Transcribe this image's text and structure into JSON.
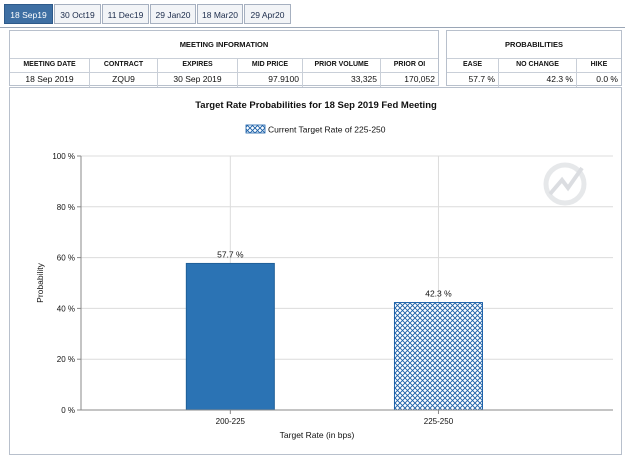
{
  "tabs": [
    {
      "label": "18 Sep19",
      "active": true
    },
    {
      "label": "30 Oct19",
      "active": false
    },
    {
      "label": "11 Dec19",
      "active": false
    },
    {
      "label": "29 Jan20",
      "active": false
    },
    {
      "label": "18 Mar20",
      "active": false
    },
    {
      "label": "29 Apr20",
      "active": false
    }
  ],
  "meeting_info": {
    "title": "MEETING INFORMATION",
    "headers": [
      "MEETING DATE",
      "CONTRACT",
      "EXPIRES",
      "MID PRICE",
      "PRIOR VOLUME",
      "PRIOR OI"
    ],
    "values": [
      "18 Sep 2019",
      "ZQU9",
      "30 Sep 2019",
      "97.9100",
      "33,325",
      "170,052"
    ]
  },
  "probabilities": {
    "title": "PROBABILITIES",
    "headers": [
      "EASE",
      "NO CHANGE",
      "HIKE"
    ],
    "values": [
      "57.7 %",
      "42.3 %",
      "0.0 %"
    ]
  },
  "colors": {
    "bar_solid": "#2b73b4",
    "bar_hatch": "#1a5fa8",
    "tab_active": "#3e6fa3"
  },
  "chart_data": {
    "type": "bar",
    "title": "Target Rate Probabilities for 18 Sep 2019 Fed Meeting",
    "legend": "Current Target Rate of 225-250",
    "legend_position": "top-center",
    "xlabel": "Target Rate (in bps)",
    "ylabel": "Probability",
    "categories": [
      "200-225",
      "225-250"
    ],
    "values": [
      57.7,
      42.3
    ],
    "data_labels": [
      "57.7 %",
      "42.3 %"
    ],
    "hatched": [
      false,
      true
    ],
    "ylim": [
      0,
      100
    ],
    "yticks": [
      0,
      20,
      40,
      60,
      80,
      100
    ],
    "ytick_labels": [
      "0 %",
      "20 %",
      "40 %",
      "60 %",
      "80 %",
      "100 %"
    ],
    "grid": true
  }
}
